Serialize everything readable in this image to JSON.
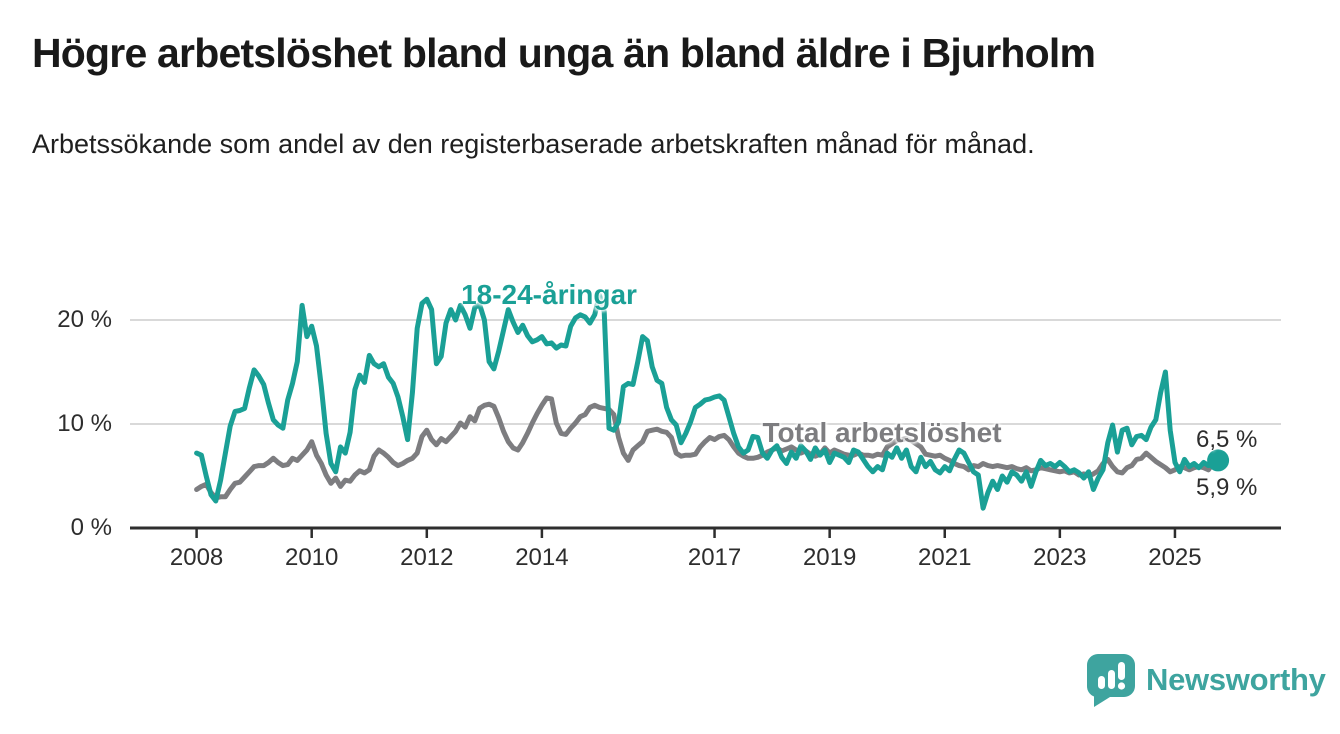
{
  "header": {
    "title": "Högre arbetslöshet bland unga än bland äldre i Bjurholm",
    "subtitle": "Arbetssökande som andel av den registerbaserade arbetskraften månad för månad."
  },
  "footer": {
    "brand": "Newsworthy"
  },
  "colors": {
    "youth_line": "#1aa096",
    "total_line": "#7d7d80",
    "grid": "#d9d9d9",
    "axis": "#2e2e2e",
    "tick_text": "#2d2d2d",
    "title_text": "#191919",
    "brand_teal": "#3ea49f"
  },
  "chart_data": {
    "type": "line",
    "title": "Högre arbetslöshet bland unga än bland äldre i Bjurholm",
    "subtitle": "Arbetssökande som andel av den registerbaserade arbetskraften månad för månad.",
    "x_unit": "month",
    "x_start": "2008-01",
    "x_end": "2025-10",
    "ylim": [
      0,
      24
    ],
    "grid": "horizontal",
    "legend_position": "inline-labels",
    "y_ticks": [
      {
        "value": 0,
        "label": "0 %"
      },
      {
        "value": 10,
        "label": "10 %"
      },
      {
        "value": 20,
        "label": "20 %"
      }
    ],
    "x_ticks": [
      {
        "year": 2008,
        "label": "2008"
      },
      {
        "year": 2010,
        "label": "2010"
      },
      {
        "year": 2012,
        "label": "2012"
      },
      {
        "year": 2014,
        "label": "2014"
      },
      {
        "year": 2017,
        "label": "2017"
      },
      {
        "year": 2019,
        "label": "2019"
      },
      {
        "year": 2021,
        "label": "2021"
      },
      {
        "year": 2023,
        "label": "2023"
      },
      {
        "year": 2025,
        "label": "2025"
      }
    ],
    "series": [
      {
        "name": "18-24-åringar",
        "color": "#1aa096",
        "end_label": "6,5 %",
        "end_dot": true,
        "values": [
          7.2,
          7.0,
          5.0,
          3.2,
          2.6,
          4.6,
          7.2,
          9.8,
          11.2,
          11.3,
          11.5,
          13.5,
          15.2,
          14.6,
          13.8,
          12.0,
          10.4,
          9.9,
          9.6,
          12.3,
          13.9,
          16.0,
          21.4,
          18.4,
          19.4,
          17.5,
          13.6,
          9.1,
          6.2,
          5.4,
          7.8,
          7.2,
          9.2,
          13.3,
          14.7,
          14.0,
          16.6,
          15.8,
          15.5,
          15.8,
          14.5,
          13.9,
          12.6,
          10.7,
          8.5,
          13.0,
          19.2,
          21.6,
          22.0,
          21.0,
          15.8,
          16.5,
          19.7,
          21.0,
          20.0,
          21.4,
          20.5,
          19.2,
          21.2,
          21.5,
          20.0,
          16.0,
          15.3,
          17.0,
          19.0,
          21.0,
          19.8,
          18.8,
          19.5,
          18.5,
          17.9,
          18.1,
          18.4,
          17.7,
          17.8,
          17.3,
          17.6,
          17.5,
          19.4,
          20.2,
          20.5,
          20.3,
          19.7,
          20.5,
          22.4,
          20.8,
          9.6,
          9.4,
          10.2,
          13.6,
          13.9,
          13.8,
          16.0,
          18.4,
          18.0,
          15.5,
          14.2,
          13.9,
          11.6,
          10.4,
          9.9,
          8.2,
          9.1,
          10.2,
          11.6,
          11.9,
          12.3,
          12.4,
          12.6,
          12.7,
          12.3,
          10.7,
          9.1,
          7.8,
          7.2,
          7.5,
          8.8,
          8.7,
          7.2,
          6.7,
          7.5,
          7.9,
          6.8,
          6.2,
          7.3,
          6.7,
          7.9,
          7.4,
          6.6,
          7.7,
          7.0,
          7.5,
          6.3,
          7.2,
          7.0,
          6.8,
          6.3,
          7.5,
          7.3,
          6.6,
          5.9,
          5.4,
          5.9,
          5.6,
          7.2,
          6.8,
          7.7,
          6.7,
          7.5,
          5.9,
          5.4,
          6.8,
          5.9,
          6.4,
          5.6,
          5.3,
          5.9,
          5.5,
          6.6,
          7.5,
          7.2,
          6.3,
          5.4,
          5.1,
          1.9,
          3.4,
          4.5,
          3.7,
          5.0,
          4.4,
          5.4,
          5.1,
          4.5,
          5.4,
          4.0,
          5.4,
          6.5,
          6.0,
          6.2,
          5.9,
          6.3,
          5.9,
          5.4,
          5.6,
          5.3,
          4.8,
          5.4,
          3.7,
          4.8,
          5.6,
          8.2,
          9.9,
          7.3,
          9.4,
          9.6,
          8.0,
          8.8,
          8.9,
          8.5,
          9.7,
          10.4,
          13.0,
          15.0,
          9.4,
          6.3,
          5.4,
          6.6,
          5.9,
          6.2,
          5.8,
          6.3,
          6.0,
          6.7,
          6.5
        ]
      },
      {
        "name": "Total arbetslöshet",
        "color": "#7d7d80",
        "end_label": "5,9 %",
        "end_dot": false,
        "values": [
          3.7,
          4.0,
          4.2,
          3.4,
          2.9,
          3.0,
          3.0,
          3.7,
          4.3,
          4.4,
          4.9,
          5.4,
          5.9,
          6.0,
          6.0,
          6.3,
          6.7,
          6.3,
          6.0,
          6.1,
          6.7,
          6.5,
          7.0,
          7.5,
          8.3,
          7.0,
          6.2,
          5.1,
          4.3,
          4.8,
          4.0,
          4.6,
          4.5,
          5.1,
          5.5,
          5.3,
          5.6,
          6.9,
          7.5,
          7.2,
          6.8,
          6.3,
          6.0,
          6.2,
          6.5,
          6.7,
          7.2,
          8.8,
          9.4,
          8.5,
          8.0,
          8.6,
          8.3,
          8.8,
          9.3,
          10.1,
          9.7,
          10.7,
          10.3,
          11.5,
          11.8,
          11.9,
          11.7,
          10.6,
          9.3,
          8.3,
          7.7,
          7.5,
          8.2,
          9.1,
          10.1,
          11.0,
          11.8,
          12.5,
          12.4,
          10.1,
          9.1,
          9.0,
          9.6,
          10.1,
          10.7,
          10.9,
          11.6,
          11.8,
          11.6,
          11.5,
          11.4,
          10.9,
          8.7,
          7.2,
          6.5,
          7.5,
          7.9,
          8.3,
          9.3,
          9.4,
          9.5,
          9.3,
          9.2,
          8.7,
          7.2,
          6.9,
          7.0,
          7.0,
          7.1,
          7.8,
          8.3,
          8.7,
          8.5,
          8.8,
          8.9,
          8.5,
          7.8,
          7.2,
          6.9,
          6.7,
          6.7,
          6.8,
          7.0,
          7.3,
          7.5,
          7.7,
          7.4,
          7.6,
          7.8,
          7.5,
          7.2,
          7.4,
          7.1,
          6.9,
          7.1,
          7.7,
          7.2,
          7.5,
          7.3,
          7.1,
          7.0,
          7.0,
          7.2,
          7.0,
          7.0,
          6.9,
          7.1,
          7.0,
          7.8,
          8.1,
          8.4,
          8.5,
          8.6,
          8.4,
          8.1,
          7.8,
          7.1,
          7.0,
          6.9,
          7.0,
          6.7,
          6.5,
          6.2,
          6.0,
          5.9,
          5.6,
          6.0,
          5.9,
          6.2,
          6.0,
          5.9,
          6.0,
          5.9,
          5.8,
          5.9,
          5.7,
          5.6,
          5.8,
          5.5,
          5.6,
          5.8,
          5.7,
          5.6,
          5.5,
          5.4,
          5.5,
          5.3,
          5.4,
          5.1,
          5.2,
          5.0,
          5.2,
          5.5,
          6.2,
          6.6,
          5.9,
          5.4,
          5.3,
          5.8,
          6.0,
          6.6,
          6.7,
          7.2,
          6.8,
          6.4,
          6.1,
          5.8,
          5.4,
          5.6,
          5.9,
          5.8,
          5.6,
          5.8,
          5.9,
          5.8,
          5.6,
          6.3,
          5.9
        ]
      }
    ]
  }
}
